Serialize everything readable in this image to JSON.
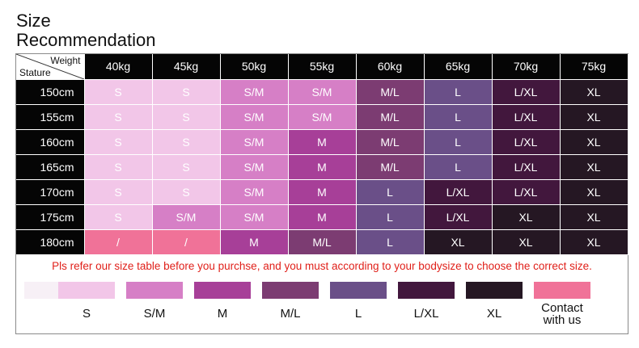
{
  "title": {
    "line1": "Size",
    "line2": "Recommendation"
  },
  "corner": {
    "weight": "Weight",
    "stature": "Stature"
  },
  "weights": [
    "40kg",
    "45kg",
    "50kg",
    "55kg",
    "60kg",
    "65kg",
    "70kg",
    "75kg"
  ],
  "rows": [
    {
      "height": "150cm",
      "sizes": [
        "S",
        "S",
        "S/M",
        "S/M",
        "M/L",
        "L",
        "L/XL",
        "XL"
      ]
    },
    {
      "height": "155cm",
      "sizes": [
        "S",
        "S",
        "S/M",
        "S/M",
        "M/L",
        "L",
        "L/XL",
        "XL"
      ]
    },
    {
      "height": "160cm",
      "sizes": [
        "S",
        "S",
        "S/M",
        "M",
        "M/L",
        "L",
        "L/XL",
        "XL"
      ]
    },
    {
      "height": "165cm",
      "sizes": [
        "S",
        "S",
        "S/M",
        "M",
        "M/L",
        "L",
        "L/XL",
        "XL"
      ]
    },
    {
      "height": "170cm",
      "sizes": [
        "S",
        "S",
        "S/M",
        "M",
        "L",
        "L/XL",
        "L/XL",
        "XL"
      ]
    },
    {
      "height": "175cm",
      "sizes": [
        "S",
        "S/M",
        "S/M",
        "M",
        "L",
        "L/XL",
        "XL",
        "XL"
      ]
    },
    {
      "height": "180cm",
      "sizes": [
        "/",
        "/",
        "M",
        "M/L",
        "L",
        "XL",
        "XL",
        "XL"
      ]
    }
  ],
  "note": "Pls refer our size table before you purchse, and you must according to your bodysize to choose the correct size.",
  "legend": [
    {
      "label": "S",
      "color": "#f2c6e8"
    },
    {
      "label": "S/M",
      "color": "#d67fc6"
    },
    {
      "label": "M",
      "color": "#a73f98"
    },
    {
      "label": "M/L",
      "color": "#7c3c72"
    },
    {
      "label": "L",
      "color": "#6a4f88"
    },
    {
      "label": "L/XL",
      "color": "#42173d"
    },
    {
      "label": "XL",
      "color": "#251723"
    },
    {
      "label": "Contact with us",
      "color": "#f07298"
    }
  ],
  "colors": {
    "S": "#f2c6e8",
    "S/M": "#d67fc6",
    "M": "#a73f98",
    "M/L": "#7c3c72",
    "L": "#6a4f88",
    "L/XL": "#42173d",
    "XL": "#251723",
    "/": "#f07298"
  }
}
